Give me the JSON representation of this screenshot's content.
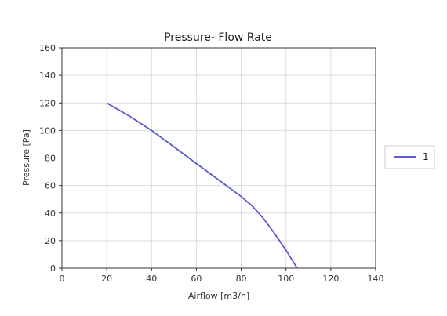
{
  "chart_data": {
    "type": "line",
    "title": "Pressure- Flow Rate",
    "xlabel": "Airflow [m3/h]",
    "ylabel": "Pressure [Pa]",
    "xlim": [
      0,
      140
    ],
    "ylim": [
      0,
      160
    ],
    "x_ticks": [
      0,
      20,
      40,
      60,
      80,
      100,
      120,
      140
    ],
    "y_ticks": [
      0,
      20,
      40,
      60,
      80,
      100,
      120,
      140,
      160
    ],
    "grid": true,
    "legend_position": "right",
    "series": [
      {
        "name": "1",
        "color": "#5a5ad2",
        "x": [
          20,
          30,
          40,
          50,
          60,
          70,
          80,
          85,
          90,
          95,
          100,
          105
        ],
        "y": [
          120,
          110.5,
          100,
          88,
          76,
          64,
          52,
          45,
          36,
          25,
          13,
          0
        ]
      }
    ]
  }
}
